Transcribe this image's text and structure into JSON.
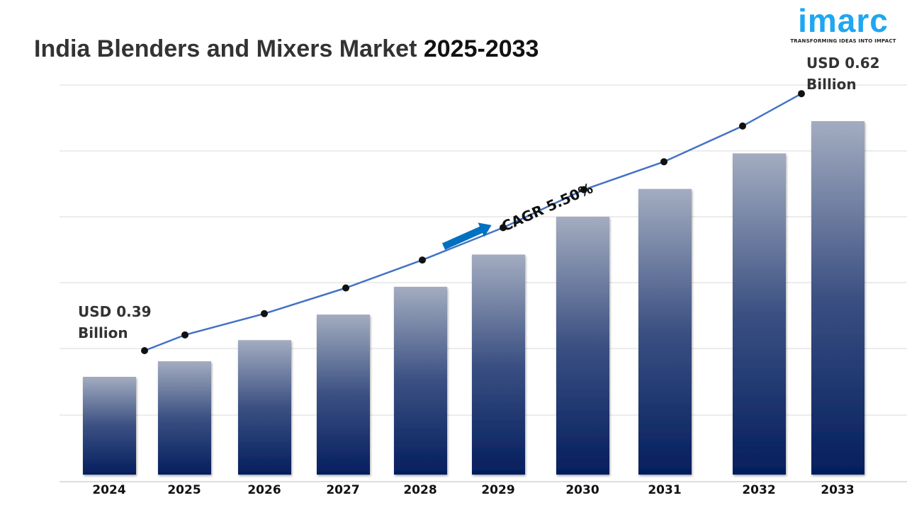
{
  "title": {
    "main": "India Blenders and Mixers Market",
    "years": "2025-2033"
  },
  "logo": {
    "word": "imarc",
    "tagline": "TRANSFORMING IDEAS INTO IMPACT"
  },
  "colors": {
    "bar_top": "#a3acc0",
    "bar_bottom": "#041e5e",
    "line": "#4472c4",
    "arrow": "#0070c0",
    "logo": "#1ea7f0"
  },
  "chart_data": {
    "type": "bar",
    "title": "India Blenders and Mixers Market 2025-2033",
    "categories": [
      "2024",
      "2025",
      "2026",
      "2027",
      "2028",
      "2029",
      "2030",
      "2031",
      "2032",
      "2033"
    ],
    "values": [
      0.39,
      0.404,
      0.423,
      0.446,
      0.471,
      0.5,
      0.534,
      0.559,
      0.591,
      0.62
    ],
    "unit": "USD Billion",
    "overlay": "line",
    "grid": true,
    "annotations": {
      "start": "USD 0.39 Billion",
      "end": "USD 0.62 Billion",
      "cagr": "CAGR 5.50%"
    },
    "start_label": [
      "USD 0.39",
      "Billion"
    ],
    "end_label": [
      "USD 0.62",
      "Billion"
    ]
  }
}
